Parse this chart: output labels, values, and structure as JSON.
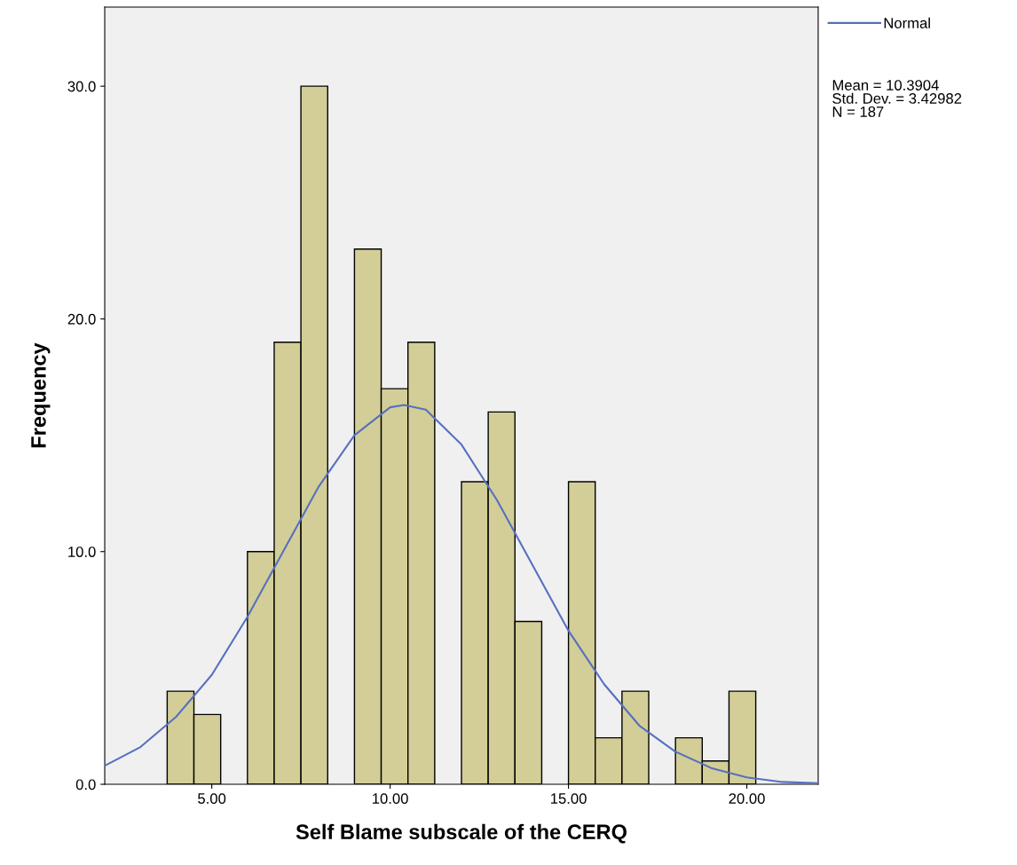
{
  "chart_data": {
    "type": "histogram",
    "xlabel": "Self Blame subscale of the CERQ",
    "ylabel": "Frequency",
    "xlim": [
      2,
      22
    ],
    "xticks": [
      {
        "value": 5,
        "label": "5.00"
      },
      {
        "value": 10,
        "label": "10.00"
      },
      {
        "value": 15,
        "label": "15.00"
      },
      {
        "value": 20,
        "label": "20.00"
      }
    ],
    "ylim": [
      0,
      33.4
    ],
    "yticks": [
      {
        "value": 0,
        "label": "0.0"
      },
      {
        "value": 10,
        "label": "10.0"
      },
      {
        "value": 20,
        "label": "20.0"
      },
      {
        "value": 30,
        "label": "30.0"
      }
    ],
    "grid": false,
    "legend": "top right",
    "annotations": [
      "Mean = 10.3904\nStd. Dev. = 3.42982\nN = 187"
    ],
    "series": [
      {
        "color": "#d3ce97",
        "bins": [
          3.75,
          4.5,
          5.25,
          6,
          6.75,
          7.5,
          8.25,
          9,
          9.75,
          10.5,
          11.25,
          12,
          12.75,
          13.5,
          14.25,
          15,
          15.75,
          16.5,
          17.25,
          18,
          18.75,
          19.5,
          20.25
        ],
        "values": [
          4,
          3,
          0,
          10,
          19,
          30,
          0,
          23,
          17,
          19,
          0,
          13,
          16,
          7,
          0,
          13,
          2,
          4,
          0,
          2,
          1,
          4
        ]
      },
      {
        "type": "line",
        "name": "Normal",
        "color": "#5670c0",
        "x": [
          2,
          3,
          4,
          5,
          6,
          7,
          8,
          9,
          10,
          10.39,
          11,
          12,
          13,
          14,
          15,
          16,
          17,
          18,
          19,
          20,
          21,
          22
        ],
        "values": [
          0.8,
          1.6,
          2.9,
          4.7,
          7.2,
          10.0,
          12.8,
          15.0,
          16.2,
          16.3,
          16.1,
          14.6,
          12.2,
          9.4,
          6.6,
          4.3,
          2.5,
          1.4,
          0.7,
          0.3,
          0.1,
          0.05
        ]
      }
    ]
  }
}
